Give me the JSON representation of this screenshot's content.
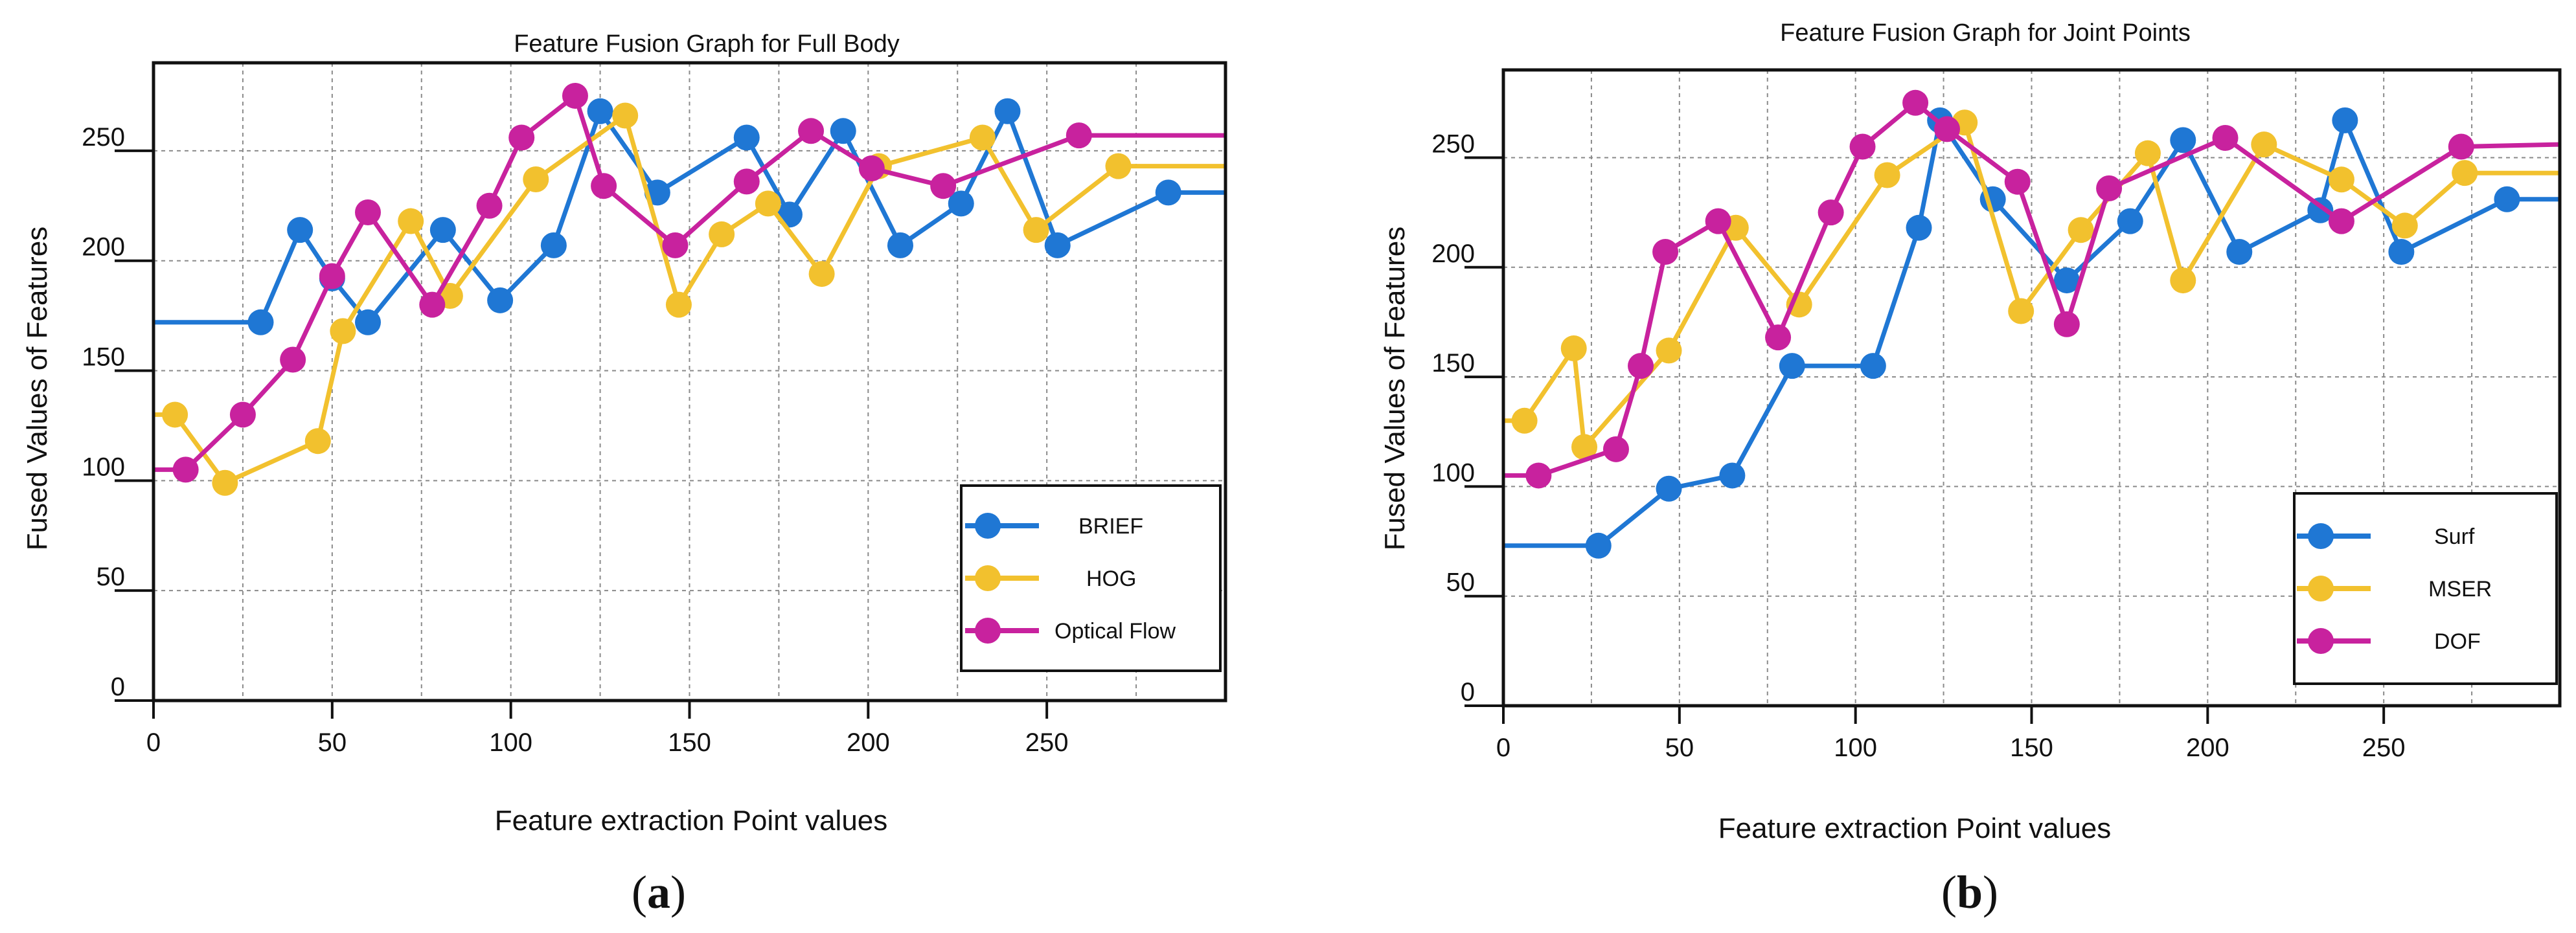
{
  "colors": {
    "blue": "#1f77d4",
    "yellow": "#f2c12e",
    "magenta": "#c8229e"
  },
  "chart_data": [
    {
      "panel": "a",
      "type": "line",
      "title": "Feature Fusion Graph for Full Body",
      "xlabel": "Feature extraction Point values",
      "ylabel": "Fused Values of Features",
      "xlim": [
        0,
        300
      ],
      "ylim": [
        0,
        290
      ],
      "xticks": [
        0,
        50,
        100,
        150,
        200,
        250
      ],
      "yticks": [
        0,
        50,
        100,
        150,
        200,
        250
      ],
      "grid": true,
      "legend_position": "bottom-right",
      "caption_open": "(",
      "caption_letter": "a",
      "caption_close": ")",
      "series": [
        {
          "name": "BRIEF",
          "color": "#1f77d4",
          "x": [
            0,
            30,
            41,
            50,
            60,
            81,
            97,
            112,
            125,
            141,
            166,
            178,
            193,
            209,
            226,
            239,
            253,
            284,
            300
          ],
          "y": [
            172,
            172,
            214,
            192,
            172,
            214,
            182,
            207,
            268,
            231,
            256,
            221,
            259,
            207,
            226,
            268,
            207,
            231,
            231
          ],
          "markers": [
            false,
            true,
            true,
            true,
            true,
            true,
            true,
            true,
            true,
            true,
            true,
            true,
            true,
            true,
            true,
            true,
            true,
            true,
            false
          ]
        },
        {
          "name": "HOG",
          "color": "#f2c12e",
          "x": [
            0,
            6,
            20,
            46,
            53,
            72,
            83,
            107,
            132,
            147,
            159,
            172,
            187,
            203,
            232,
            247,
            270,
            300
          ],
          "y": [
            130,
            130,
            99,
            118,
            168,
            218,
            184,
            237,
            266,
            180,
            212,
            226,
            194,
            243,
            256,
            214,
            243,
            243
          ],
          "markers": [
            false,
            true,
            true,
            true,
            true,
            true,
            true,
            true,
            true,
            true,
            true,
            true,
            true,
            true,
            true,
            true,
            true,
            false
          ]
        },
        {
          "name": "Optical Flow",
          "color": "#c8229e",
          "x": [
            0,
            9,
            25,
            39,
            50,
            60,
            78,
            94,
            103,
            118,
            126,
            146,
            166,
            184,
            201,
            221,
            259,
            300
          ],
          "y": [
            105,
            105,
            130,
            155,
            193,
            222,
            180,
            225,
            256,
            275,
            234,
            207,
            236,
            259,
            242,
            234,
            257,
            257
          ],
          "markers": [
            false,
            true,
            true,
            true,
            true,
            true,
            true,
            true,
            true,
            true,
            true,
            true,
            true,
            true,
            true,
            true,
            true,
            false
          ]
        }
      ]
    },
    {
      "panel": "b",
      "type": "line",
      "title": "Feature Fusion Graph for Joint Points",
      "xlabel": "Feature extraction Point values",
      "ylabel": "Fused Values of Features",
      "xlim": [
        0,
        300
      ],
      "ylim": [
        0,
        290
      ],
      "xticks": [
        0,
        50,
        100,
        150,
        200,
        250
      ],
      "yticks": [
        0,
        50,
        100,
        150,
        200,
        250
      ],
      "grid": true,
      "legend_position": "bottom-right",
      "caption_open": "(",
      "caption_letter": "b",
      "caption_close": ")",
      "series": [
        {
          "name": "Surf",
          "color": "#1f77d4",
          "x": [
            0,
            27,
            47,
            65,
            82,
            105,
            118,
            124,
            139,
            160,
            178,
            193,
            209,
            232,
            239,
            255,
            285,
            300
          ],
          "y": [
            73,
            73,
            99,
            105,
            155,
            155,
            218,
            267,
            231,
            194,
            221,
            258,
            207,
            226,
            267,
            207,
            231,
            231
          ],
          "markers": [
            false,
            true,
            true,
            true,
            true,
            true,
            true,
            true,
            true,
            true,
            true,
            true,
            true,
            true,
            true,
            true,
            true,
            false
          ]
        },
        {
          "name": "MSER",
          "color": "#f2c12e",
          "x": [
            0,
            6,
            20,
            23,
            47,
            66,
            84,
            109,
            131,
            147,
            164,
            183,
            193,
            216,
            238,
            256,
            273,
            300
          ],
          "y": [
            130,
            130,
            163,
            118,
            162,
            218,
            183,
            242,
            266,
            180,
            217,
            252,
            194,
            256,
            240,
            219,
            243,
            243
          ],
          "markers": [
            false,
            true,
            true,
            true,
            true,
            true,
            true,
            true,
            true,
            true,
            true,
            true,
            true,
            true,
            true,
            true,
            true,
            false
          ]
        },
        {
          "name": "DOF",
          "color": "#c8229e",
          "x": [
            0,
            10,
            32,
            39,
            46,
            61,
            78,
            93,
            102,
            117,
            126,
            146,
            160,
            172,
            205,
            238,
            272,
            300
          ],
          "y": [
            105,
            105,
            117,
            155,
            207,
            221,
            168,
            225,
            255,
            275,
            263,
            239,
            174,
            236,
            259,
            221,
            255,
            256
          ],
          "markers": [
            false,
            true,
            true,
            true,
            true,
            true,
            true,
            true,
            true,
            true,
            true,
            true,
            true,
            true,
            true,
            true,
            true,
            false
          ]
        }
      ]
    }
  ]
}
